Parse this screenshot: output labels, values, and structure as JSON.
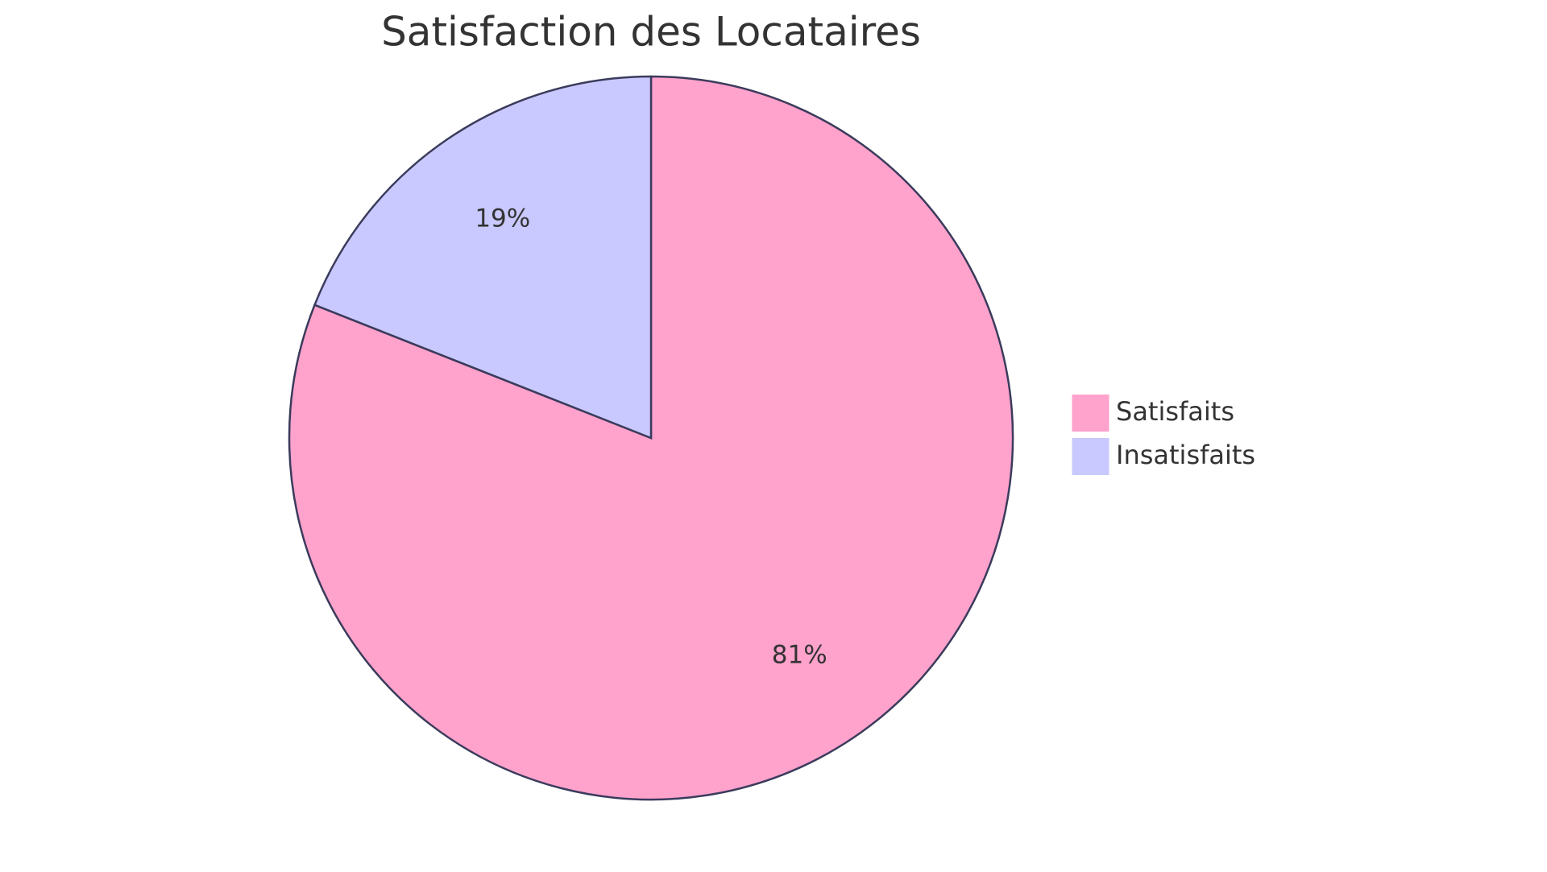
{
  "chart_data": {
    "type": "pie",
    "title": "Satisfaction des Locataires",
    "categories": [
      "Satisfaits",
      "Insatisfaits"
    ],
    "values": [
      81,
      19
    ],
    "value_labels": [
      "81%",
      "19%"
    ],
    "colors": [
      "#FFA2CC",
      "#C9C9FF"
    ],
    "legend": "right"
  }
}
